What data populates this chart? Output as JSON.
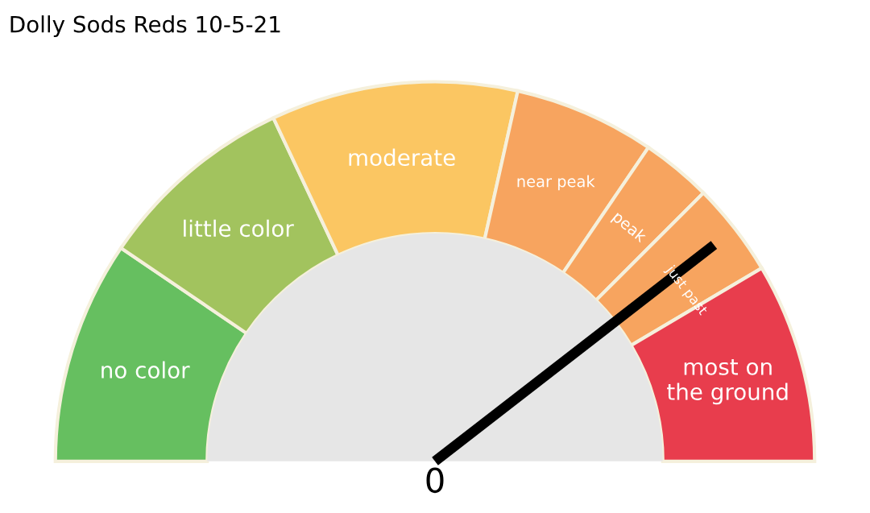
{
  "chart_data": {
    "type": "donut",
    "title": "Dolly Sods Reds 10-5-21",
    "categories": [
      "no color",
      "little color",
      "moderate",
      "near peak",
      "peak",
      "just past",
      "most on\nthe ground"
    ],
    "values": [
      19,
      17,
      21,
      12,
      6,
      8,
      17
    ],
    "colors": [
      "#66bf60",
      "#a2c35e",
      "#fbc662",
      "#f7a45f",
      "#f7a45f",
      "#f7a45f",
      "#e83d4d"
    ],
    "needle": "just past",
    "annotations": [
      "0"
    ]
  }
}
